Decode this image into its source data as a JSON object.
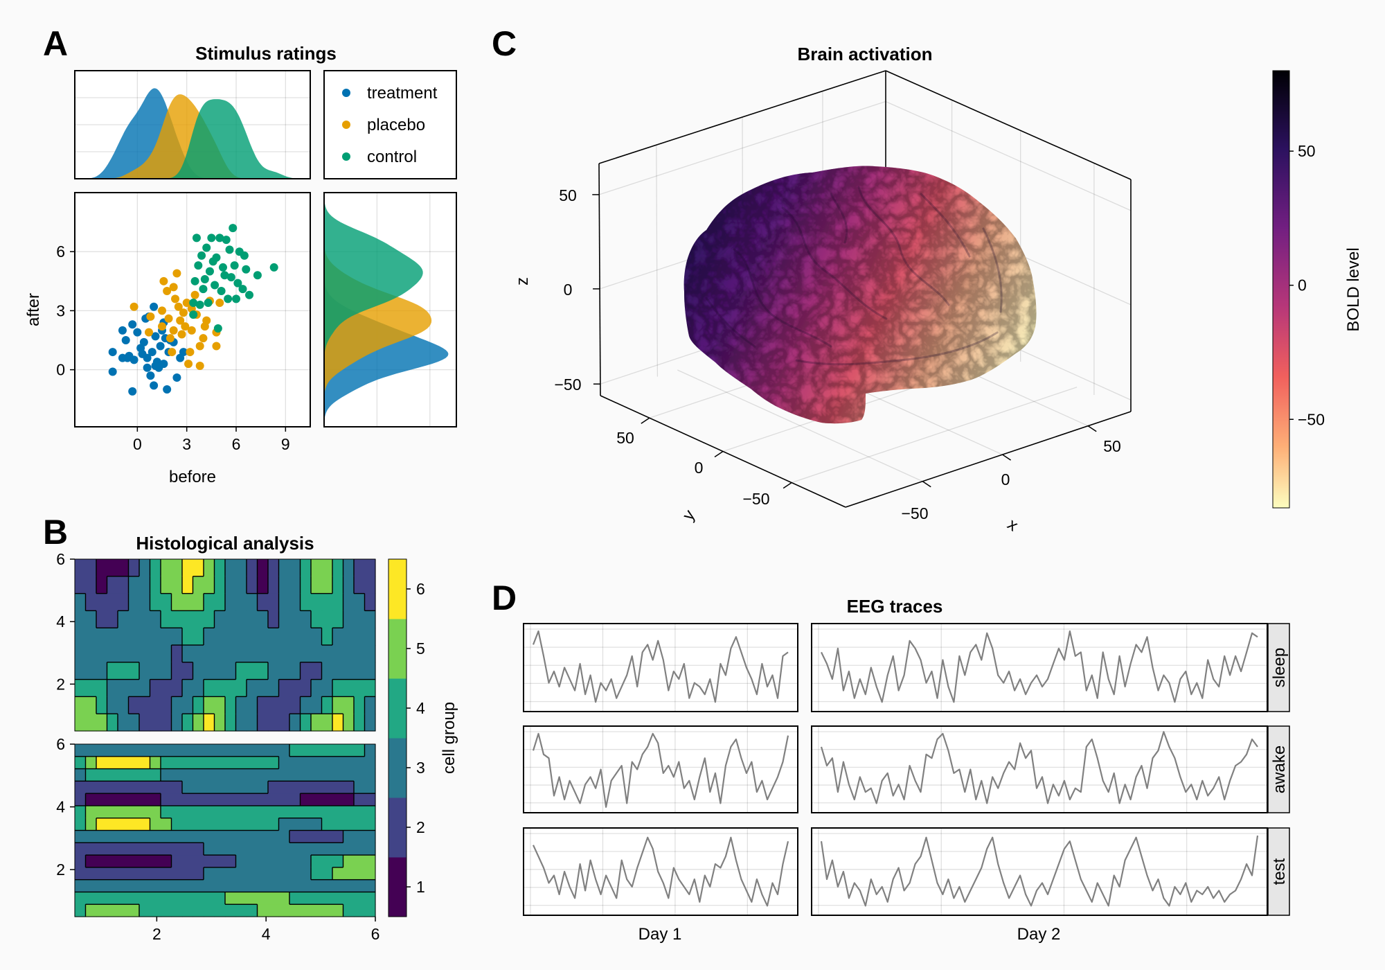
{
  "panels": {
    "a": "A",
    "b": "B",
    "c": "C",
    "d": "D"
  },
  "colors": {
    "treatment": "#0072b2",
    "placebo": "#e69f00",
    "control": "#009e73",
    "eeg_line": "#808080"
  },
  "chart_data": [
    {
      "type": "scatter",
      "title": "Stimulus ratings",
      "xlabel": "before",
      "ylabel": "after",
      "xlim": [
        -3.8,
        10.5
      ],
      "ylim": [
        -2.9,
        9.0
      ],
      "xticks": [
        "0",
        "3",
        "6",
        "9"
      ],
      "yticks": [
        "0",
        "3",
        "6"
      ],
      "grid": true,
      "marginals": "density of before (top) and after (right) per group",
      "legend": {
        "placement": "top-right",
        "entries": [
          "treatment",
          "placebo",
          "control"
        ]
      },
      "series": [
        {
          "name": "treatment",
          "points": [
            [
              -1.5,
              0.9
            ],
            [
              -1.5,
              -0.1
            ],
            [
              -0.3,
              -1.1
            ],
            [
              -0.9,
              0.6
            ],
            [
              -0.6,
              0.6
            ],
            [
              -0.7,
              1.5
            ],
            [
              -0.9,
              2.0
            ],
            [
              -0.3,
              2.3
            ],
            [
              0.0,
              1.9
            ],
            [
              0.3,
              0.8
            ],
            [
              0.5,
              2.6
            ],
            [
              0.7,
              2.7
            ],
            [
              1.0,
              3.2
            ],
            [
              0.6,
              0.1
            ],
            [
              0.8,
              -0.3
            ],
            [
              1.0,
              -0.8
            ],
            [
              1.2,
              0.4
            ],
            [
              1.4,
              1.2
            ],
            [
              1.6,
              0.3
            ],
            [
              1.8,
              -1.0
            ],
            [
              1.9,
              0.9
            ],
            [
              2.0,
              1.5
            ],
            [
              2.2,
              1.4
            ],
            [
              2.4,
              -0.4
            ],
            [
              2.6,
              0.6
            ],
            [
              1.5,
              2.0
            ],
            [
              1.1,
              1.7
            ],
            [
              0.2,
              1.1
            ],
            [
              -0.2,
              0.5
            ],
            [
              1.7,
              1.6
            ],
            [
              0.9,
              0.9
            ],
            [
              1.3,
              0.1
            ],
            [
              2.8,
              0.9
            ],
            [
              0.4,
              1.4
            ],
            [
              1.6,
              2.4
            ],
            [
              0.6,
              0.6
            ],
            [
              1.1,
              0.2
            ],
            [
              -0.5,
              0.7
            ]
          ]
        },
        {
          "name": "placebo",
          "points": [
            [
              -0.2,
              3.2
            ],
            [
              0.8,
              2.7
            ],
            [
              0.7,
              1.9
            ],
            [
              1.5,
              2.2
            ],
            [
              1.5,
              3.0
            ],
            [
              1.6,
              4.5
            ],
            [
              1.8,
              4.0
            ],
            [
              2.2,
              4.2
            ],
            [
              2.3,
              3.6
            ],
            [
              2.5,
              3.2
            ],
            [
              2.6,
              2.5
            ],
            [
              2.8,
              2.9
            ],
            [
              3.0,
              3.4
            ],
            [
              2.1,
              0.9
            ],
            [
              3.1,
              0.3
            ],
            [
              3.2,
              0.9
            ],
            [
              3.8,
              0.2
            ],
            [
              3.8,
              1.2
            ],
            [
              4.0,
              1.6
            ],
            [
              4.2,
              2.5
            ],
            [
              4.4,
              3.5
            ],
            [
              4.8,
              1.2
            ],
            [
              4.8,
              1.9
            ],
            [
              5.0,
              3.4
            ],
            [
              2.4,
              4.9
            ],
            [
              3.3,
              2.0
            ],
            [
              2.0,
              1.6
            ],
            [
              3.6,
              2.8
            ],
            [
              2.7,
              1.8
            ],
            [
              3.5,
              3.8
            ],
            [
              4.1,
              2.2
            ],
            [
              1.9,
              2.6
            ],
            [
              2.9,
              2.2
            ],
            [
              3.3,
              3.1
            ],
            [
              2.2,
              2.0
            ]
          ]
        },
        {
          "name": "control",
          "points": [
            [
              3.4,
              2.8
            ],
            [
              3.4,
              3.4
            ],
            [
              3.5,
              4.5
            ],
            [
              3.6,
              6.7
            ],
            [
              3.7,
              5.3
            ],
            [
              3.9,
              5.8
            ],
            [
              4.0,
              4.1
            ],
            [
              4.2,
              6.2
            ],
            [
              4.4,
              5.0
            ],
            [
              4.5,
              6.7
            ],
            [
              4.7,
              4.3
            ],
            [
              4.8,
              5.7
            ],
            [
              5.0,
              6.7
            ],
            [
              5.1,
              4.0
            ],
            [
              5.2,
              5.2
            ],
            [
              5.4,
              6.6
            ],
            [
              5.5,
              3.6
            ],
            [
              5.7,
              4.7
            ],
            [
              5.8,
              7.2
            ],
            [
              6.0,
              3.6
            ],
            [
              6.1,
              4.4
            ],
            [
              6.2,
              6.0
            ],
            [
              6.4,
              4.1
            ],
            [
              6.6,
              5.1
            ],
            [
              6.8,
              3.8
            ],
            [
              7.3,
              4.8
            ],
            [
              8.3,
              5.2
            ],
            [
              4.9,
              2.1
            ],
            [
              5.6,
              6.1
            ],
            [
              4.3,
              3.4
            ],
            [
              6.5,
              5.8
            ],
            [
              5.3,
              4.8
            ],
            [
              3.8,
              3.3
            ],
            [
              4.6,
              5.5
            ],
            [
              5.9,
              5.3
            ],
            [
              4.1,
              4.6
            ]
          ]
        }
      ]
    },
    {
      "type": "heatmap",
      "title": "Histological analysis",
      "colorbar_label": "cell group",
      "colorbar_ticks": [
        "1",
        "2",
        "3",
        "4",
        "5",
        "6"
      ],
      "levels": [
        1,
        2,
        3,
        4,
        5,
        6
      ],
      "level_colors": [
        "#440154",
        "#414487",
        "#2a788e",
        "#22a884",
        "#7ad151",
        "#fde725"
      ],
      "xlim": [
        0.5,
        6
      ],
      "ylim": [
        0.5,
        6
      ],
      "xticks": [
        "2",
        "4",
        "6"
      ],
      "yticks": [
        "2",
        "4",
        "6"
      ],
      "panels": [
        {
          "rows": [
            "2211123455665433212334554322",
            "2212233455655433212334554322",
            "3222233445554433322334444332",
            "3322333344444333332333444333",
            "3333333333443333333333343333",
            "3333333332333333333333333333",
            "3334443332233334443332233333",
            "4443333222334444333222334444",
            "5543322223345543322223345543",
            "5554332223456543322234556543"
          ]
        },
        {
          "rows": [
            "3333333333333333333344444443",
            "4566666544444444444333333333",
            "3444444433333333333333333333",
            "2222222222333333332222222233",
            "2111111122222222222221111122",
            "4555555544444444444444444444",
            "4566666554444444444333344444",
            "3333333333333333333322222333",
            "2222222222223333333333333333",
            "2111111112222223333333444555",
            "2222222222223333333333445555",
            "3333333333333333333333333333",
            "4444444444444455555544444444",
            "4555554444444444455555555444"
          ]
        }
      ]
    },
    {
      "type": "surface3d",
      "title": "Brain activation",
      "xlabel": "x",
      "ylabel": "y",
      "zlabel": "z",
      "xticks": [
        "50",
        "0",
        "−50"
      ],
      "yticks": [
        "50",
        "0",
        "−50"
      ],
      "zticks": [
        "50",
        "0",
        "−50"
      ],
      "colorbar_label": "BOLD level",
      "colorbar_ticks": [
        "50",
        "0",
        "−50"
      ],
      "colorbar_range": [
        -83,
        80
      ],
      "colormap": "magma (reversed)"
    },
    {
      "type": "line",
      "title": "EEG traces",
      "columns": [
        "Day 1",
        "Day 2"
      ],
      "rows": [
        "sleep",
        "awake",
        "test"
      ],
      "ylim": [
        -1.15,
        1.15
      ],
      "traces": {
        "sleep": {
          "Day 1": [
            0.6,
            0.95,
            0.3,
            -0.4,
            -0.1,
            -0.5,
            0.0,
            -0.3,
            -0.6,
            0.1,
            -0.7,
            -0.2,
            -0.9,
            -0.4,
            -0.6,
            -0.3,
            -0.8,
            -0.5,
            -0.2,
            0.3,
            -0.5,
            0.4,
            0.6,
            0.2,
            0.7,
            0.2,
            -0.6,
            -0.1,
            -0.3,
            0.1,
            -0.8,
            -0.4,
            -0.5,
            -0.7,
            -0.3,
            -0.9,
            0.1,
            -0.2,
            0.5,
            0.8,
            0.4,
            0.0,
            -0.3,
            -0.7,
            0.1,
            -0.5,
            -0.2,
            -0.8,
            0.3,
            0.4
          ],
          "Day 2": [
            0.4,
            0.1,
            -0.3,
            0.5,
            -0.6,
            -0.1,
            -0.8,
            -0.3,
            -0.7,
            0.0,
            -0.5,
            -0.9,
            -0.2,
            0.3,
            -0.6,
            -0.2,
            0.7,
            0.5,
            0.2,
            -0.4,
            -0.1,
            -0.8,
            0.2,
            -0.5,
            -0.9,
            0.3,
            -0.2,
            0.4,
            0.6,
            0.2,
            0.9,
            0.5,
            -0.2,
            -0.4,
            -0.1,
            -0.6,
            -0.3,
            -0.7,
            -0.4,
            -0.2,
            -0.5,
            -0.3,
            0.1,
            0.5,
            0.2,
            0.95,
            0.3,
            0.4,
            -0.6,
            -0.2,
            -0.8,
            0.4,
            -0.3,
            -0.7,
            0.3,
            -0.5,
            0.1,
            0.6,
            0.4,
            0.8,
            0.0,
            -0.6,
            -0.2,
            -0.4,
            -0.9,
            -0.3,
            -0.1,
            -0.7,
            -0.4,
            -0.8,
            0.2,
            -0.3,
            -0.5,
            0.3,
            -0.2,
            0.3,
            -0.1,
            0.4,
            0.9,
            0.8
          ]
        },
        "awake": {
          "Day 1": [
            0.5,
            0.95,
            0.4,
            0.3,
            -0.7,
            -0.2,
            -0.8,
            -0.3,
            -0.6,
            -0.9,
            -0.4,
            -0.2,
            -0.5,
            0.0,
            -1.0,
            -0.3,
            -0.1,
            0.1,
            -0.9,
            0.2,
            0.0,
            0.4,
            0.6,
            0.95,
            0.7,
            -0.1,
            0.1,
            -0.2,
            0.2,
            -0.5,
            -0.3,
            -0.8,
            -0.2,
            0.3,
            -0.6,
            -0.1,
            -0.9,
            0.1,
            0.6,
            0.8,
            0.3,
            -0.1,
            0.2,
            -0.6,
            -0.3,
            -0.8,
            -0.5,
            -0.2,
            0.2,
            0.9
          ],
          "Day 2": [
            0.6,
            0.1,
            0.3,
            -0.6,
            0.2,
            -0.4,
            -0.8,
            -0.2,
            -0.6,
            -0.5,
            -0.9,
            -0.3,
            -0.1,
            -0.7,
            -0.4,
            -0.8,
            0.1,
            -0.3,
            -0.6,
            0.4,
            0.3,
            0.8,
            0.95,
            0.5,
            -0.1,
            0.0,
            -0.6,
            0.0,
            -0.8,
            -0.3,
            -0.9,
            -0.2,
            -0.5,
            -0.1,
            0.2,
            0.0,
            0.7,
            0.3,
            0.5,
            -0.5,
            -0.2,
            -0.9,
            -0.4,
            -0.7,
            -0.3,
            -0.8,
            -0.5,
            -0.6,
            0.6,
            0.8,
            0.3,
            -0.3,
            -0.6,
            -0.1,
            -0.9,
            -0.4,
            -0.8,
            -0.2,
            0.1,
            -0.5,
            0.3,
            0.5,
            1.0,
            0.6,
            0.3,
            -0.2,
            -0.6,
            -0.4,
            -0.8,
            -0.3,
            -0.7,
            -0.5,
            -0.2,
            -0.8,
            -0.3,
            0.1,
            0.2,
            0.4,
            0.8,
            0.6
          ]
        },
        "test": {
          "Day 1": [
            0.7,
            0.4,
            0.1,
            -0.3,
            -0.1,
            -0.6,
            0.0,
            -0.4,
            -0.7,
            0.2,
            -0.5,
            0.3,
            -0.2,
            -0.6,
            -0.1,
            -0.4,
            -0.7,
            0.3,
            -0.2,
            -0.4,
            0.1,
            0.5,
            0.9,
            0.6,
            0.0,
            -0.3,
            -0.7,
            0.1,
            -0.2,
            -0.4,
            -0.6,
            -0.2,
            -0.8,
            -0.1,
            -0.4,
            0.2,
            0.1,
            0.4,
            0.9,
            0.3,
            -0.2,
            -0.5,
            -0.8,
            -0.2,
            -0.6,
            -0.9,
            -0.3,
            -0.6,
            0.2,
            0.8
          ],
          "Day 2": [
            0.8,
            -0.2,
            0.3,
            -0.4,
            0.0,
            -0.7,
            -0.3,
            -0.5,
            -0.9,
            -0.2,
            -0.6,
            -0.4,
            -0.8,
            -0.2,
            0.1,
            -0.5,
            -0.3,
            0.2,
            0.4,
            0.9,
            0.3,
            -0.3,
            -0.6,
            -0.2,
            -0.7,
            -0.4,
            -0.8,
            -0.5,
            -0.2,
            0.1,
            0.6,
            0.9,
            0.2,
            -0.3,
            -0.7,
            -0.4,
            -0.1,
            -0.6,
            -0.9,
            -0.5,
            -0.3,
            -0.6,
            -0.2,
            0.2,
            0.6,
            0.8,
            0.3,
            -0.2,
            -0.5,
            -0.8,
            -0.3,
            -0.6,
            -0.9,
            -0.1,
            -0.4,
            0.3,
            0.6,
            0.9,
            0.4,
            -0.1,
            -0.5,
            -0.2,
            -0.7,
            -0.9,
            -0.4,
            -0.6,
            -0.3,
            -0.8,
            -0.5,
            -0.6,
            -0.4,
            -0.7,
            -0.5,
            -0.8,
            -0.6,
            -0.5,
            -0.2,
            0.2,
            -0.1,
            0.95
          ]
        }
      }
    }
  ]
}
